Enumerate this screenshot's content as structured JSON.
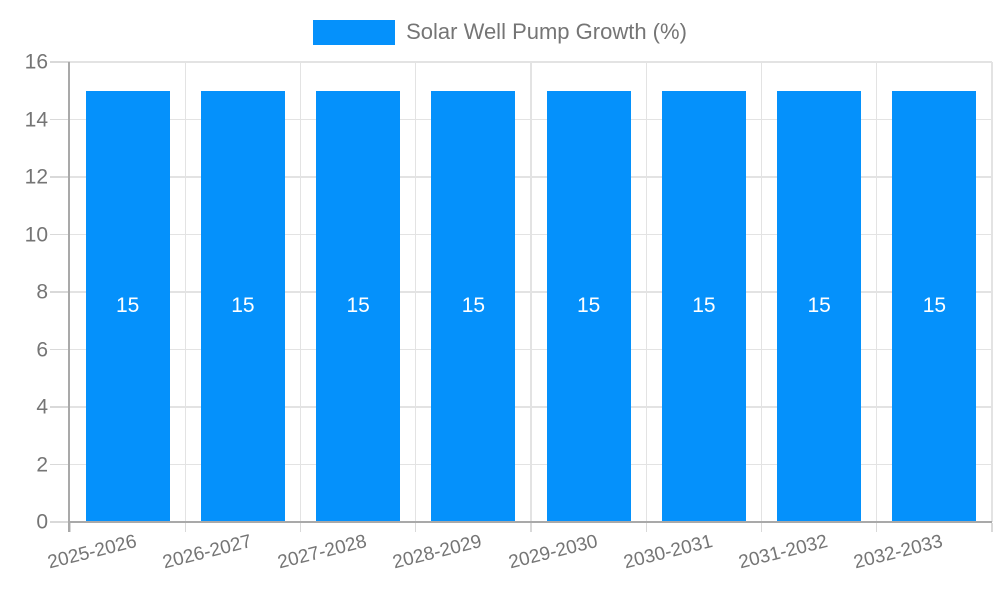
{
  "chart_data": {
    "type": "bar",
    "title": "Solar Well Pump Growth (%)",
    "categories": [
      "2025-2026",
      "2026-2027",
      "2027-2028",
      "2028-2029",
      "2029-2030",
      "2030-2031",
      "2031-2032",
      "2032-2033"
    ],
    "series": [
      {
        "name": "Solar Well Pump Growth (%)",
        "values": [
          15,
          15,
          15,
          15,
          15,
          15,
          15,
          15
        ]
      }
    ],
    "bar_value_labels": [
      "15",
      "15",
      "15",
      "15",
      "15",
      "15",
      "15",
      "15"
    ],
    "xlabel": "",
    "ylabel": "",
    "ylim": [
      0,
      16
    ],
    "yticks": [
      0,
      2,
      4,
      6,
      8,
      10,
      12,
      14,
      16
    ],
    "grid": true,
    "legend_position": "top",
    "x_tick_label_rotation_deg": -14,
    "colors": {
      "bar": "#0591fb",
      "grid": "#e3e3e3",
      "axis": "#a9a9a9",
      "tick": "#d9d9d9",
      "axis_label": "#757575",
      "bar_label": "#ffffff",
      "background": "#ffffff"
    }
  }
}
